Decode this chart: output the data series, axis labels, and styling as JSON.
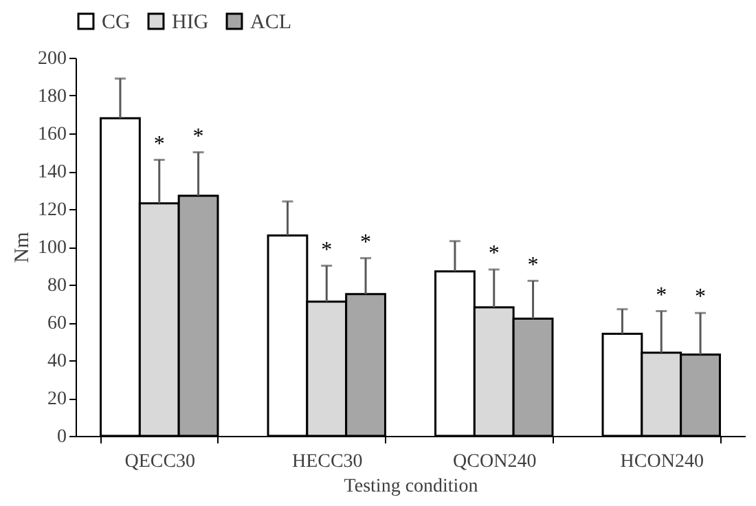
{
  "chart_data": {
    "type": "bar",
    "xlabel": "Testing condition",
    "ylabel": "Nm",
    "categories": [
      "QECC30",
      "HECC30",
      "QCON240",
      "HCON240"
    ],
    "series": [
      {
        "name": "CG",
        "color": "#ffffff",
        "values": [
          168,
          106,
          87,
          54
        ],
        "errors": [
          [
            168,
            189
          ],
          [
            106,
            124
          ],
          [
            87,
            103
          ],
          [
            54,
            67
          ]
        ],
        "value_labels": [
          null,
          null,
          null,
          null
        ]
      },
      {
        "name": "HIG",
        "color": "#d9d9d9",
        "values": [
          123,
          71,
          68,
          44
        ],
        "errors": [
          [
            123,
            146
          ],
          [
            71,
            90
          ],
          [
            68,
            88
          ],
          [
            44,
            66
          ]
        ],
        "value_labels": [
          "*",
          "*",
          "*",
          "*"
        ]
      },
      {
        "name": "ACL",
        "color": "#a6a6a6",
        "values": [
          127,
          75,
          62,
          43
        ],
        "errors": [
          [
            127,
            150
          ],
          [
            75,
            94
          ],
          [
            62,
            82
          ],
          [
            43,
            65
          ]
        ],
        "value_labels": [
          "*",
          "*",
          "*",
          "*"
        ]
      }
    ],
    "ylim": [
      0,
      200
    ],
    "yticks": [
      0,
      20,
      40,
      60,
      80,
      100,
      120,
      140,
      160,
      180,
      200
    ],
    "grid": false,
    "legend": "top"
  }
}
